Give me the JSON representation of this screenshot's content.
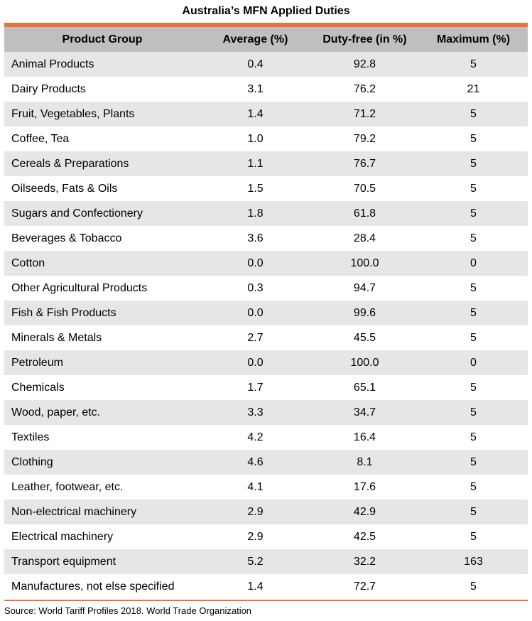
{
  "title": "Australia’s MFN Applied Duties",
  "columns": [
    "Product Group",
    "Average (%)",
    "Duty-free (in %)",
    "Maximum (%)"
  ],
  "rows": [
    {
      "group": "Animal Products",
      "average": "0.4",
      "duty_free": "92.8",
      "maximum": "5"
    },
    {
      "group": "Dairy Products",
      "average": "3.1",
      "duty_free": "76.2",
      "maximum": "21"
    },
    {
      "group": "Fruit, Vegetables, Plants",
      "average": "1.4",
      "duty_free": "71.2",
      "maximum": "5"
    },
    {
      "group": "Coffee, Tea",
      "average": "1.0",
      "duty_free": "79.2",
      "maximum": "5"
    },
    {
      "group": "Cereals & Preparations",
      "average": "1.1",
      "duty_free": "76.7",
      "maximum": "5"
    },
    {
      "group": "Oilseeds, Fats & Oils",
      "average": "1.5",
      "duty_free": "70.5",
      "maximum": "5"
    },
    {
      "group": "Sugars and Confectionery",
      "average": "1.8",
      "duty_free": "61.8",
      "maximum": "5"
    },
    {
      "group": "Beverages & Tobacco",
      "average": "3.6",
      "duty_free": "28.4",
      "maximum": "5"
    },
    {
      "group": "Cotton",
      "average": "0.0",
      "duty_free": "100.0",
      "maximum": "0"
    },
    {
      "group": "Other Agricultural Products",
      "average": "0.3",
      "duty_free": "94.7",
      "maximum": "5"
    },
    {
      "group": "Fish & Fish Products",
      "average": "0.0",
      "duty_free": "99.6",
      "maximum": "5"
    },
    {
      "group": "Minerals & Metals",
      "average": "2.7",
      "duty_free": "45.5",
      "maximum": "5"
    },
    {
      "group": "Petroleum",
      "average": "0.0",
      "duty_free": "100.0",
      "maximum": "0"
    },
    {
      "group": "Chemicals",
      "average": "1.7",
      "duty_free": "65.1",
      "maximum": "5"
    },
    {
      "group": "Wood, paper, etc.",
      "average": "3.3",
      "duty_free": "34.7",
      "maximum": "5"
    },
    {
      "group": "Textiles",
      "average": "4.2",
      "duty_free": "16.4",
      "maximum": "5"
    },
    {
      "group": "Clothing",
      "average": "4.6",
      "duty_free": "8.1",
      "maximum": "5"
    },
    {
      "group": "Leather, footwear, etc.",
      "average": "4.1",
      "duty_free": "17.6",
      "maximum": "5"
    },
    {
      "group": "Non-electrical machinery",
      "average": "2.9",
      "duty_free": "42.9",
      "maximum": "5"
    },
    {
      "group": "Electrical machinery",
      "average": "2.9",
      "duty_free": "42.5",
      "maximum": "5"
    },
    {
      "group": "Transport equipment",
      "average": "5.2",
      "duty_free": "32.2",
      "maximum": "163"
    },
    {
      "group": "Manufactures, not else specified",
      "average": "1.4",
      "duty_free": "72.7",
      "maximum": "5"
    }
  ],
  "source": "Source: World Tariff Profiles 2018. World Trade Organization",
  "colors": {
    "accent_rule": "#e8743b",
    "header_bg": "#bfbfbf",
    "stripe_bg": "#e6e6e6"
  }
}
